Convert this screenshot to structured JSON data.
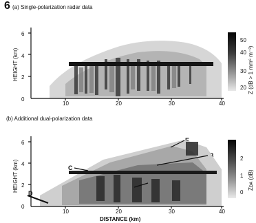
{
  "figure": {
    "number": "6",
    "panel_a": {
      "title": "(a) Single-polarization radar data",
      "ylabel": "HEIGHT (km)",
      "yticks": [
        "6",
        "4",
        "2",
        "0"
      ],
      "xticks": [
        "10",
        "20",
        "30",
        "40"
      ],
      "colorbar_label": "Z (dB > 1 mm⁶ m⁻³)",
      "colorbar_ticks": [
        "50",
        "40",
        "30",
        "20"
      ]
    },
    "panel_b": {
      "title": "(b) Additional dual-polarization data",
      "ylabel": "HEIGHT (km)",
      "yticks": [
        "6",
        "4",
        "2",
        "0"
      ],
      "xticks": [
        "10",
        "20",
        "30",
        "40"
      ],
      "colorbar_label": "Zᴅᴀ (dB)",
      "colorbar_ticks": [
        "2",
        "1",
        "0"
      ],
      "annotations": [
        "A",
        "B",
        "C",
        "D",
        "E"
      ]
    },
    "xlabel": "DISTANCE (km)"
  },
  "colors": {
    "axis": "#111111",
    "echo_light": "#c8c8c8",
    "echo_mid": "#8c8c8c",
    "echo_dark": "#2a2a2a"
  }
}
